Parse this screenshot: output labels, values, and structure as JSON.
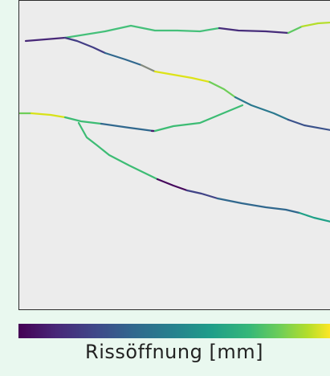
{
  "colorbar": {
    "label": "Rissöffnung [mm]",
    "colormap": "viridis"
  },
  "colors": {
    "background": "#e9f8ef",
    "plot_background": "#ececec"
  }
}
